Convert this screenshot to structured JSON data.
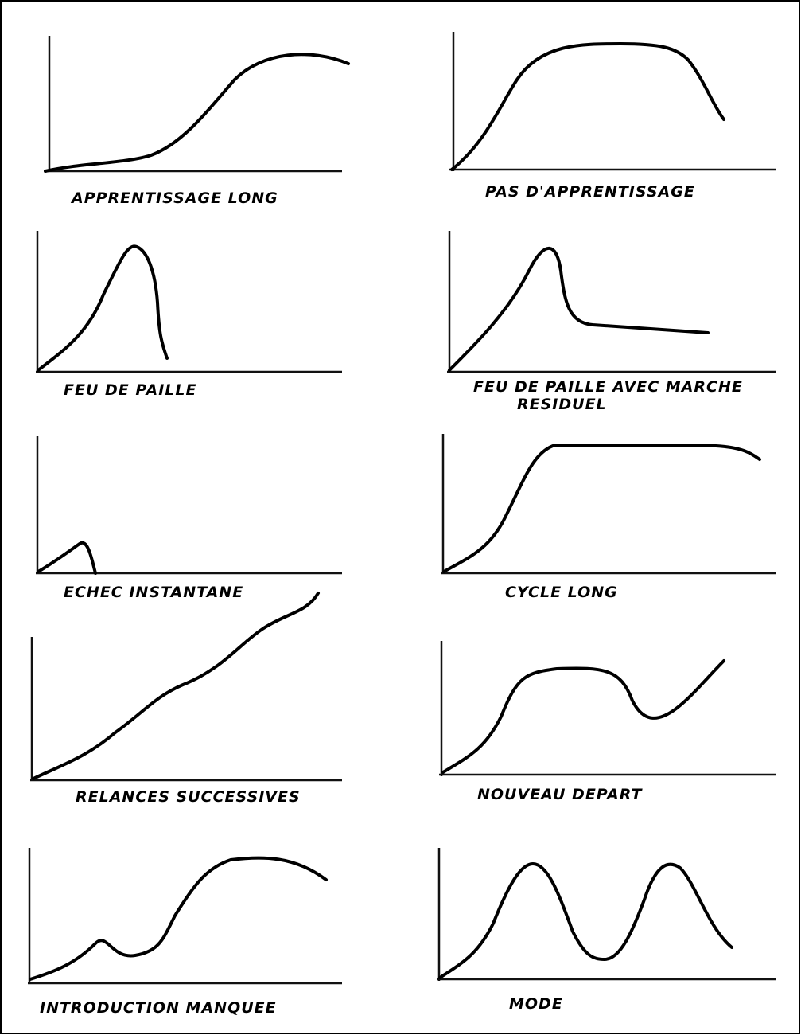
{
  "panels": [
    {
      "label": [
        "APPRENTISSAGE LONG"
      ]
    },
    {
      "label": [
        "PAS D'APPRENTISSAGE"
      ]
    },
    {
      "label": [
        "FEU DE PAILLE"
      ]
    },
    {
      "label": [
        "FEU DE PAILLE AVEC MARCHE",
        "RESIDUEL"
      ]
    },
    {
      "label": [
        "ECHEC INSTANTANE"
      ]
    },
    {
      "label": [
        "CYCLE LONG"
      ]
    },
    {
      "label": [
        "RELANCES SUCCESSIVES"
      ]
    },
    {
      "label": [
        "NOUVEAU DEPART"
      ]
    },
    {
      "label": [
        "INTRODUCTION MANQUEE"
      ]
    },
    {
      "label": [
        "MODE"
      ]
    }
  ]
}
